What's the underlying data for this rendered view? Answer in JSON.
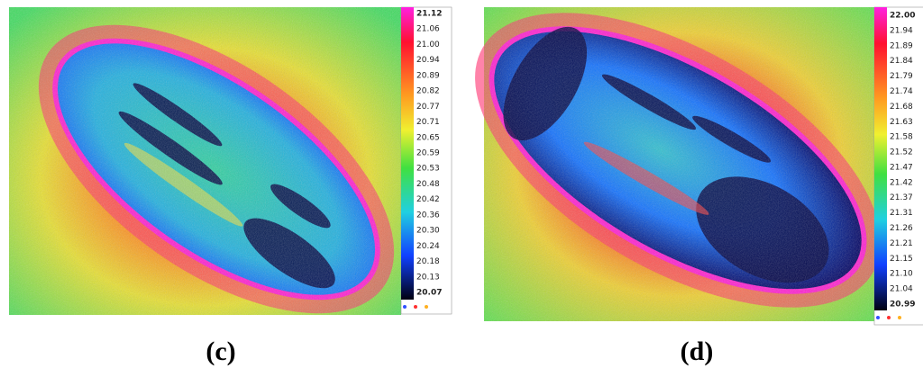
{
  "panels": [
    {
      "caption": "(c)",
      "colorbar": [
        "21.12",
        "21.06",
        "21.00",
        "20.94",
        "20.89",
        "20.82",
        "20.77",
        "20.71",
        "20.65",
        "20.59",
        "20.53",
        "20.48",
        "20.42",
        "20.36",
        "20.30",
        "20.24",
        "20.18",
        "20.13",
        "20.07"
      ]
    },
    {
      "caption": "(d)",
      "colorbar": [
        "22.00",
        "21.94",
        "21.89",
        "21.84",
        "21.79",
        "21.74",
        "21.68",
        "21.63",
        "21.58",
        "21.52",
        "21.47",
        "21.42",
        "21.37",
        "21.31",
        "21.26",
        "21.21",
        "21.15",
        "21.10",
        "21.04",
        "20.99"
      ]
    }
  ]
}
